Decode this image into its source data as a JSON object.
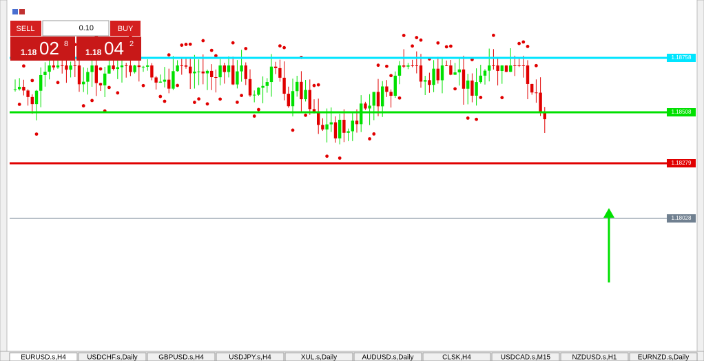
{
  "trade_panel": {
    "sell_label": "SELL",
    "buy_label": "BUY",
    "lot_size": "0.10",
    "sell_price": {
      "prefix": "1.18",
      "big": "02",
      "sup": "8"
    },
    "buy_price": {
      "prefix": "1.18",
      "big": "04",
      "sup": "2"
    }
  },
  "price_levels": [
    {
      "label": "1.18758",
      "color": "#00e5ff"
    },
    {
      "label": "1.18508",
      "color": "#00e000"
    },
    {
      "label": "1.18279",
      "color": "#e00000"
    },
    {
      "label": "1.18028",
      "color": "#708090"
    }
  ],
  "tabs": [
    "EURUSD.s,H4",
    "USDCHF.s,Daily",
    "GBPUSD.s,H4",
    "USDJPY.s,H4",
    "XUL.s,Daily",
    "AUDUSD.s,Daily",
    "CLSK,H4",
    "USDCAD.s,M15",
    "NZDUSD.s,H1",
    "EURNZD.s,Daily"
  ]
}
